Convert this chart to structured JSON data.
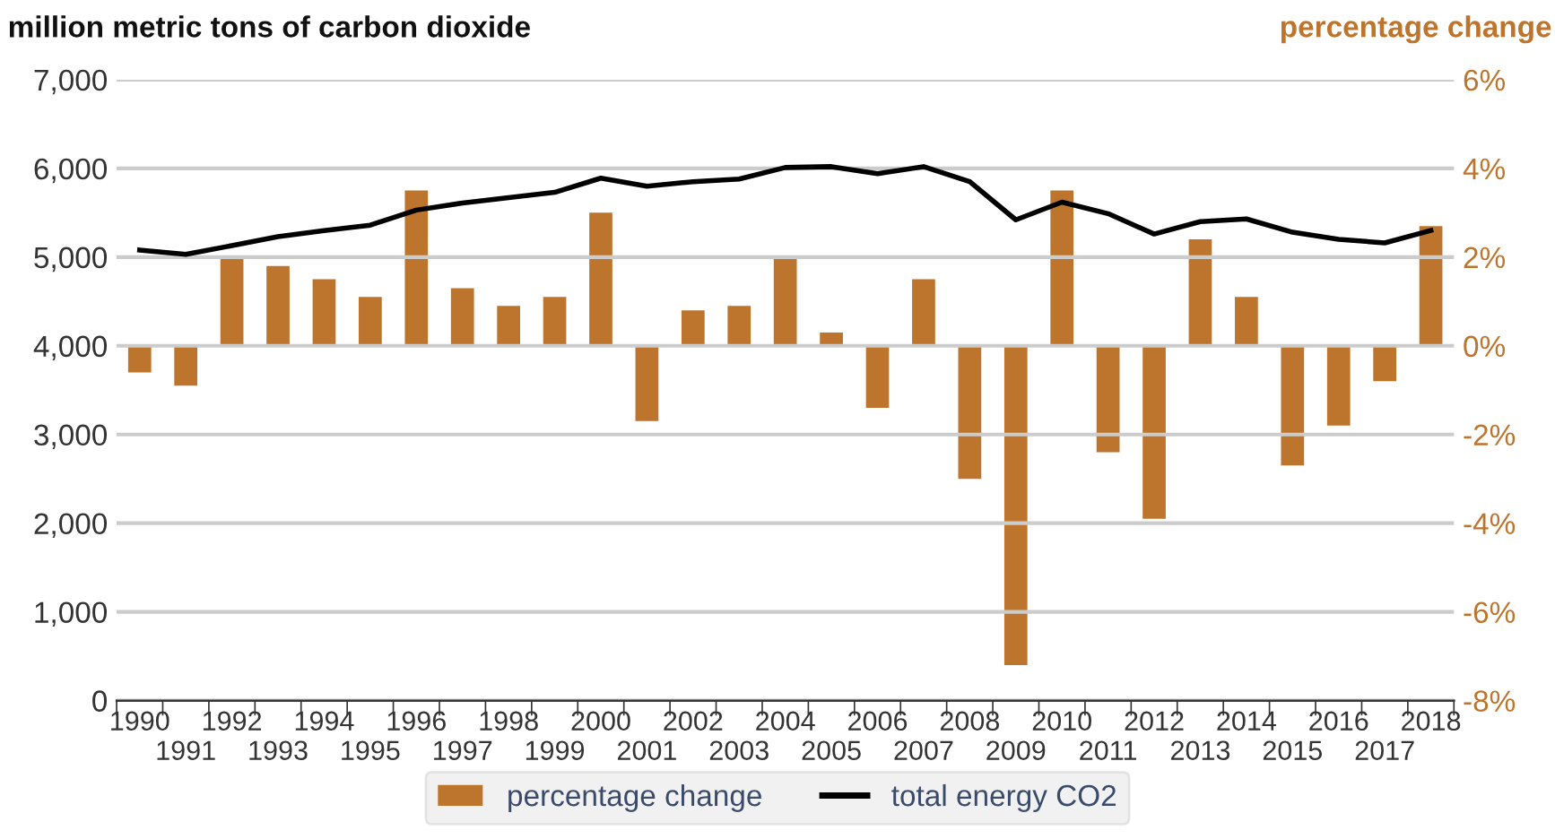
{
  "chart_data": {
    "type": "bar",
    "ylabel": "million metric tons of carbon dioxide",
    "y2label": "percentage change",
    "categories": [
      "1990",
      "1991",
      "1992",
      "1993",
      "1994",
      "1995",
      "1996",
      "1997",
      "1998",
      "1999",
      "2000",
      "2001",
      "2002",
      "2003",
      "2004",
      "2005",
      "2006",
      "2007",
      "2008",
      "2009",
      "2010",
      "2011",
      "2012",
      "2013",
      "2014",
      "2015",
      "2016",
      "2017",
      "2018"
    ],
    "series": [
      {
        "name": "percentage change",
        "axis": "y2",
        "color": "#bd742c",
        "values": [
          -0.6,
          -0.9,
          2.0,
          1.8,
          1.5,
          1.1,
          3.5,
          1.3,
          0.9,
          1.1,
          3.0,
          -1.7,
          0.8,
          0.9,
          2.0,
          0.3,
          -1.4,
          1.5,
          -3.0,
          -7.2,
          3.5,
          -2.4,
          -3.9,
          2.4,
          1.1,
          -2.7,
          -1.8,
          -0.8,
          2.7
        ]
      },
      {
        "name": "total energy CO2",
        "type": "line",
        "axis": "y",
        "color": "#000000",
        "values": [
          5080,
          5030,
          5130,
          5230,
          5300,
          5360,
          5530,
          5610,
          5670,
          5730,
          5890,
          5800,
          5850,
          5880,
          6010,
          6020,
          5940,
          6020,
          5850,
          5420,
          5620,
          5490,
          5260,
          5400,
          5430,
          5280,
          5200,
          5160,
          5300
        ]
      }
    ],
    "ylim": [
      0,
      7000
    ],
    "yticks": [
      {
        "value": 0,
        "label": "0"
      },
      {
        "value": 1000,
        "label": "1,000"
      },
      {
        "value": 2000,
        "label": "2,000"
      },
      {
        "value": 3000,
        "label": "3,000"
      },
      {
        "value": 4000,
        "label": "4,000"
      },
      {
        "value": 5000,
        "label": "5,000"
      },
      {
        "value": 6000,
        "label": "6,000"
      },
      {
        "value": 7000,
        "label": "7,000"
      }
    ],
    "y2lim": [
      -8,
      6
    ],
    "y2ticks": [
      {
        "value": -8,
        "label": "-8%"
      },
      {
        "value": -6,
        "label": "-6%"
      },
      {
        "value": -4,
        "label": "-4%"
      },
      {
        "value": -2,
        "label": "-2%"
      },
      {
        "value": 0,
        "label": "0%"
      },
      {
        "value": 2,
        "label": "2%"
      },
      {
        "value": 4,
        "label": "4%"
      },
      {
        "value": 6,
        "label": "6%"
      }
    ],
    "grid": "y",
    "legend": "bottom",
    "marker": "none",
    "line_style": "solid"
  }
}
